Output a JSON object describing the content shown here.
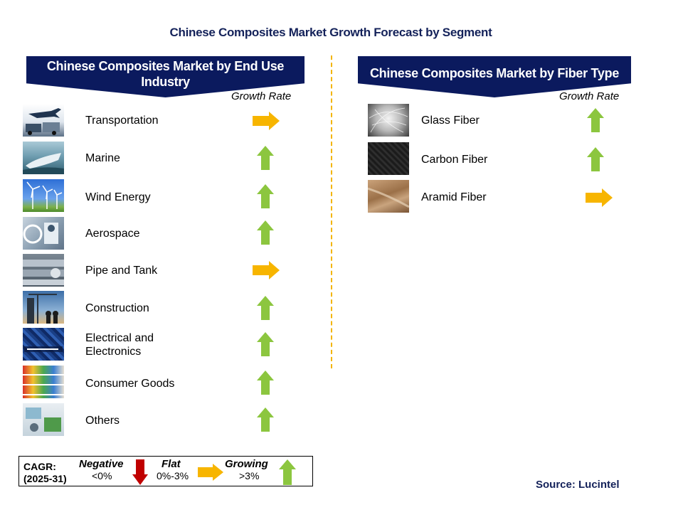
{
  "title": "Chinese Composites Market Growth Forecast by Segment",
  "left_panel": {
    "header": "Chinese Composites Market by End Use Industry",
    "growth_label": "Growth Rate",
    "items": [
      {
        "label": "Transportation",
        "trend": "flat"
      },
      {
        "label": "Marine",
        "trend": "growing"
      },
      {
        "label": "Wind Energy",
        "trend": "growing"
      },
      {
        "label": "Aerospace",
        "trend": "growing"
      },
      {
        "label": "Pipe and Tank",
        "trend": "flat"
      },
      {
        "label": "Construction",
        "trend": "growing"
      },
      {
        "label": "Electrical and\nElectronics",
        "trend": "growing"
      },
      {
        "label": "Consumer Goods",
        "trend": "growing"
      },
      {
        "label": "Others",
        "trend": "growing"
      }
    ]
  },
  "right_panel": {
    "header": "Chinese Composites Market by Fiber Type",
    "growth_label": "Growth Rate",
    "items": [
      {
        "label": "Glass Fiber",
        "trend": "growing"
      },
      {
        "label": "Carbon Fiber",
        "trend": "growing"
      },
      {
        "label": "Aramid Fiber",
        "trend": "flat"
      }
    ]
  },
  "legend": {
    "cagr_label": "CAGR:\n(2025-31)",
    "negative_title": "Negative",
    "negative_range": "<0%",
    "flat_title": "Flat",
    "flat_range": "0%-3%",
    "growing_title": "Growing",
    "growing_range": ">3%"
  },
  "source": "Source: Lucintel",
  "colors": {
    "banner": "#0b1a5e",
    "title": "#14225a",
    "growing": "#8cc63f",
    "flat": "#f7b500",
    "negative": "#c00000",
    "divider": "#f3b400"
  },
  "icons": [
    "arrow-up-icon",
    "arrow-right-icon",
    "arrow-down-icon"
  ]
}
